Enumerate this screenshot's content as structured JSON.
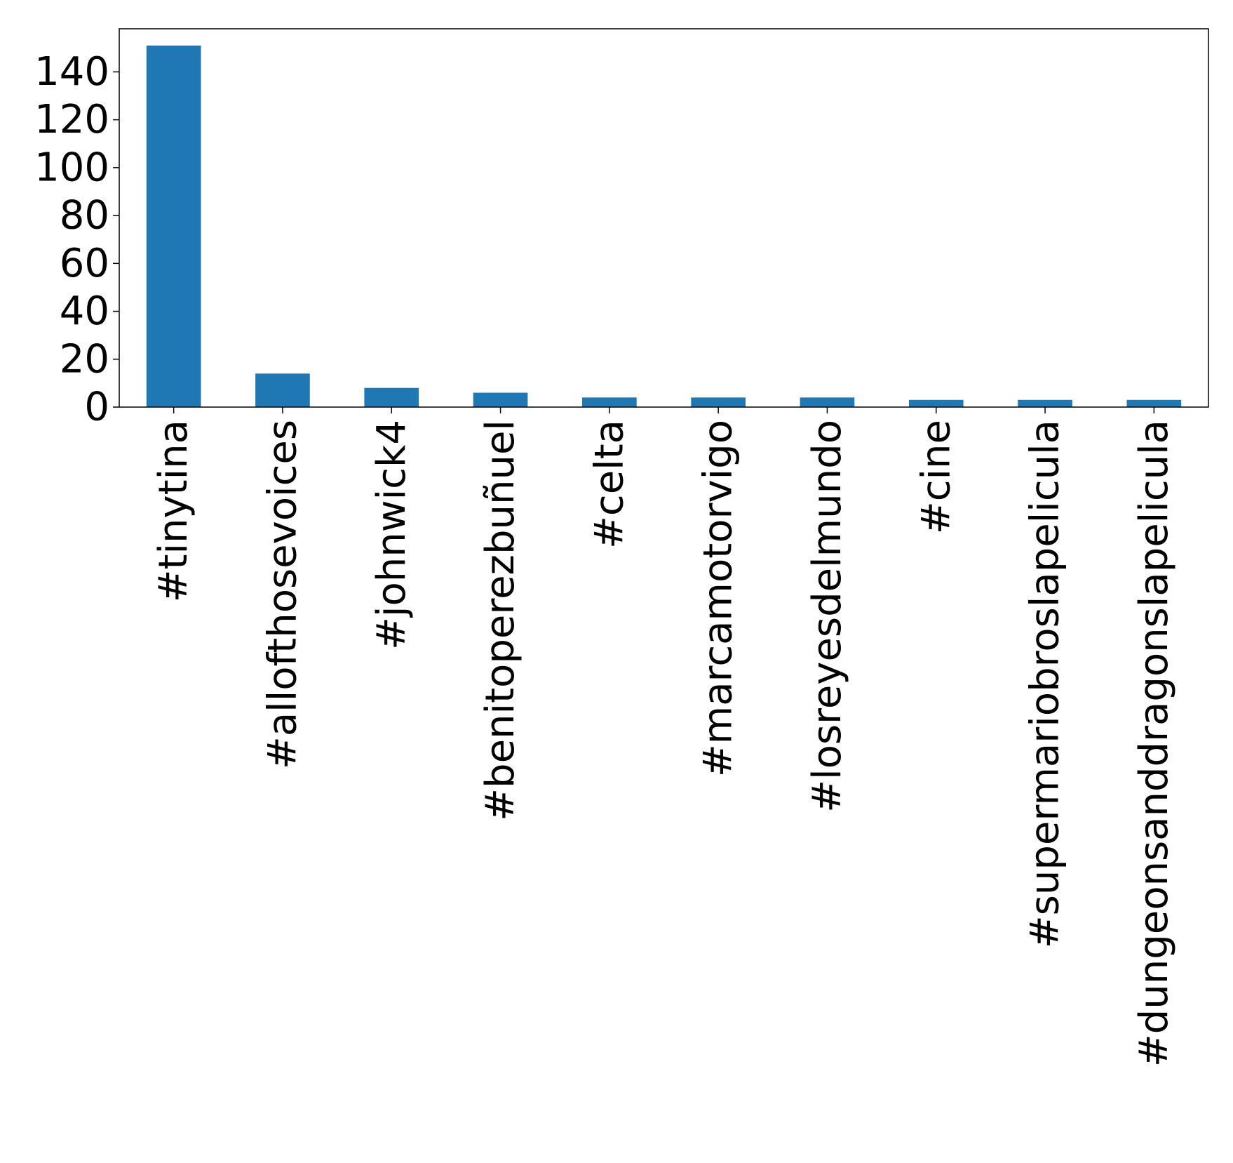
{
  "chart_data": {
    "type": "bar",
    "title": "",
    "xlabel": "",
    "ylabel": "",
    "categories": [
      "#tinytina",
      "#allofthosevoices",
      "#johnwick4",
      "#benitoperezbuñuel",
      "#celta",
      "#marcamotorvigo",
      "#losreyesdelmundo",
      "#cine",
      "#supermariobroslapelicula",
      "#dungeonsanddragonslapelicula"
    ],
    "values": [
      151,
      14,
      8,
      6,
      4,
      4,
      4,
      3,
      3,
      3
    ],
    "ylim": [
      0,
      158
    ],
    "yticks": [
      0,
      20,
      40,
      60,
      80,
      100,
      120,
      140
    ],
    "ytick_labels": [
      "0",
      "20",
      "40",
      "60",
      "80",
      "100",
      "120",
      "140"
    ],
    "bar_color": "#1f77b4",
    "grid": false,
    "legend": "none"
  }
}
